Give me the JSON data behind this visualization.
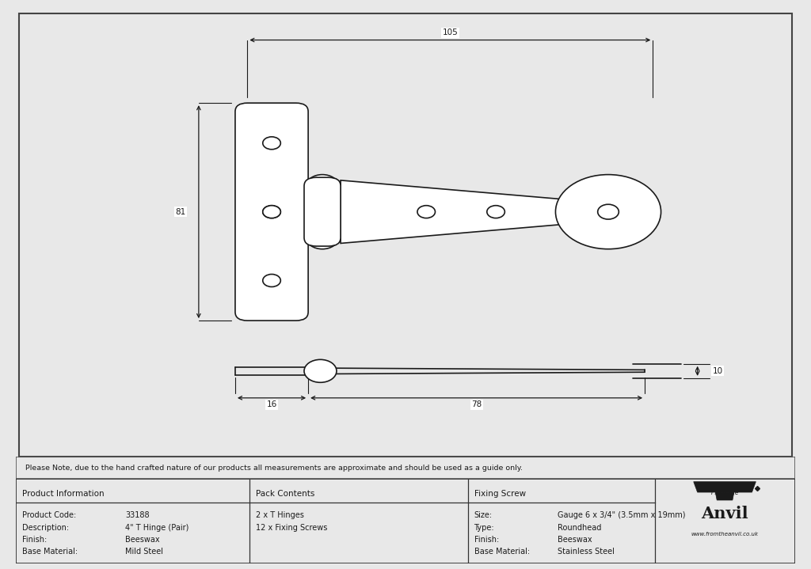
{
  "bg_color": "#e8e8e8",
  "drawing_bg": "#ffffff",
  "line_color": "#1a1a1a",
  "dim_color": "#1a1a1a",
  "note_text": "Please Note, due to the hand crafted nature of our products all measurements are approximate and should be used as a guide only.",
  "table_data": {
    "product_info_title": "Product Information",
    "pack_contents_title": "Pack Contents",
    "fixing_screw_title": "Fixing Screw",
    "product_code_label": "Product Code:",
    "product_code_value": "33188",
    "description_label": "Description:",
    "description_value": "4\" T Hinge (Pair)",
    "finish_label": "Finish:",
    "finish_value_product": "Beeswax",
    "base_material_label": "Base Material:",
    "base_material_value": "Mild Steel",
    "pack_line1": "2 x T Hinges",
    "pack_line2": "12 x Fixing Screws",
    "size_label": "Size:",
    "size_value": "Gauge 6 x 3/4\" (3.5mm x 19mm)",
    "type_label": "Type:",
    "type_value": "Roundhead",
    "finish_label2": "Finish:",
    "finish_value2": "Beeswax",
    "base_material_label2": "Base Material:",
    "base_material_value2": "Stainless Steel",
    "anvil_url": "www.fromtheanvil.co.uk"
  },
  "dim_105": "105",
  "dim_81": "81",
  "dim_16": "16",
  "dim_78": "78",
  "dim_10": "10"
}
